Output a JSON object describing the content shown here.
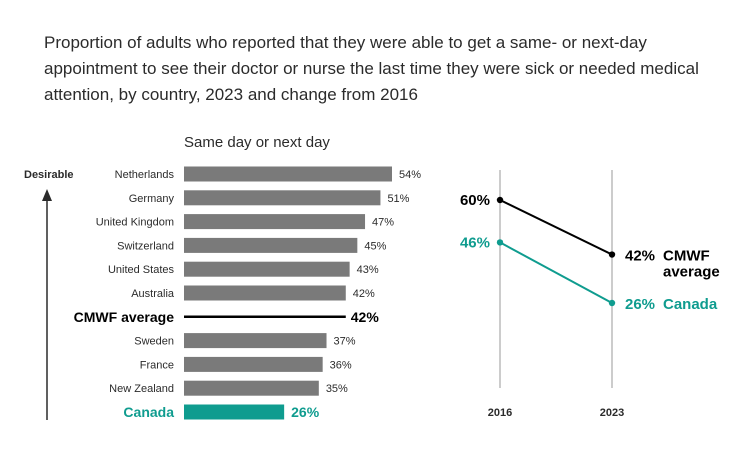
{
  "title": "Proportion of adults who reported that they were able to get a same- or next-day appointment to see their doctor or nurse the last time they were sick or needed medical attention, by country, 2023 and change from 2016",
  "colors": {
    "bar": "#7a7a7a",
    "highlight": "#0f9c8f",
    "average": "#000000",
    "text": "#2b2b2b"
  },
  "chart_data": [
    {
      "type": "bar",
      "orientation": "horizontal",
      "title": "Same day or next day",
      "axis_label": "Desirable",
      "unit": "%",
      "xlim": [
        0,
        60
      ],
      "rows": [
        {
          "label": "Netherlands",
          "value": 54,
          "display": "54%",
          "kind": "bar"
        },
        {
          "label": "Germany",
          "value": 51,
          "display": "51%",
          "kind": "bar"
        },
        {
          "label": "United Kingdom",
          "value": 47,
          "display": "47%",
          "kind": "bar"
        },
        {
          "label": "Switzerland",
          "value": 45,
          "display": "45%",
          "kind": "bar"
        },
        {
          "label": "United States",
          "value": 43,
          "display": "43%",
          "kind": "bar"
        },
        {
          "label": "Australia",
          "value": 42,
          "display": "42%",
          "kind": "bar"
        },
        {
          "label": "CMWF average",
          "value": 42,
          "display": "42%",
          "kind": "average"
        },
        {
          "label": "Sweden",
          "value": 37,
          "display": "37%",
          "kind": "bar"
        },
        {
          "label": "France",
          "value": 36,
          "display": "36%",
          "kind": "bar"
        },
        {
          "label": "New Zealand",
          "value": 35,
          "display": "35%",
          "kind": "bar"
        },
        {
          "label": "Canada",
          "value": 26,
          "display": "26%",
          "kind": "highlight"
        }
      ]
    },
    {
      "type": "line",
      "title": "Change from 2016",
      "x": [
        "2016",
        "2023"
      ],
      "ylim": [
        20,
        65
      ],
      "series": [
        {
          "name": "CMWF average",
          "label_line1": "CMWF",
          "label_line2": "average",
          "values": [
            60,
            42
          ],
          "value_labels": [
            "60%",
            "42%"
          ],
          "kind": "average"
        },
        {
          "name": "Canada",
          "label_line1": "Canada",
          "label_line2": "",
          "values": [
            46,
            26
          ],
          "value_labels": [
            "46%",
            "26%"
          ],
          "kind": "highlight"
        }
      ]
    }
  ]
}
